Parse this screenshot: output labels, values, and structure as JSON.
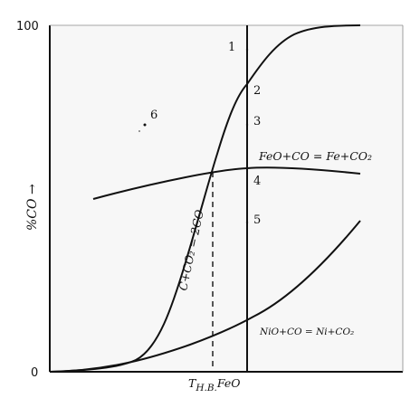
{
  "diagram": {
    "y_axis": {
      "label": "%CO →",
      "tick_top": "100",
      "tick_bottom": "0"
    },
    "x_axis": {
      "label_main": "T",
      "label_sub": "Н.В.",
      "label_tail": "FeO"
    },
    "equations": {
      "boudouard": "C+CO₂ = 2CO",
      "feo_reduction": "FeO+CO = Fe+CO₂",
      "nio_reduction": "NiO+CO = Ni+CO₂"
    },
    "point_labels": {
      "p1": "1",
      "p2": "2",
      "p3": "3",
      "p4": "4",
      "p5": "5",
      "p6": "6"
    },
    "colors": {
      "line": "#111111",
      "plot_background": "#f7f7f7"
    }
  }
}
